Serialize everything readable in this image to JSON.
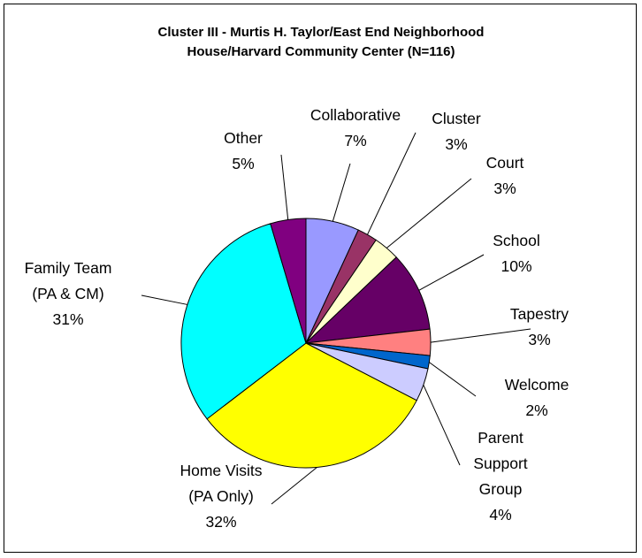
{
  "chart_data": {
    "type": "pie",
    "title_lines": [
      "Cluster III - Murtis H. Taylor/East End Neighborhood",
      "House/Harvard Community Center (N=116)"
    ],
    "slices": [
      {
        "label": [
          "Collaborative"
        ],
        "percent_text": "7%",
        "value": 6.9,
        "color": "#9999ff"
      },
      {
        "label": [
          "Cluster"
        ],
        "percent_text": "3%",
        "value": 2.6,
        "color": "#993366"
      },
      {
        "label": [
          "Court"
        ],
        "percent_text": "3%",
        "value": 3.4,
        "color": "#ffffcc"
      },
      {
        "label": [
          "School"
        ],
        "percent_text": "10%",
        "value": 10.3,
        "color": "#660066"
      },
      {
        "label": [
          "Tapestry"
        ],
        "percent_text": "3%",
        "value": 3.4,
        "color": "#ff8080"
      },
      {
        "label": [
          "Welcome"
        ],
        "percent_text": "2%",
        "value": 1.7,
        "color": "#0066cc"
      },
      {
        "label": [
          "Parent",
          "Support",
          "Group"
        ],
        "percent_text": "4%",
        "value": 4.3,
        "color": "#ccccff"
      },
      {
        "label": [
          "Home Visits",
          "(PA Only)"
        ],
        "percent_text": "32%",
        "value": 32.0,
        "color": "#ffff00"
      },
      {
        "label": [
          "Family Team",
          "(PA & CM)"
        ],
        "percent_text": "31%",
        "value": 30.8,
        "color": "#00ffff"
      },
      {
        "label": [
          "Other"
        ],
        "percent_text": "5%",
        "value": 4.6,
        "color": "#800080"
      }
    ]
  }
}
